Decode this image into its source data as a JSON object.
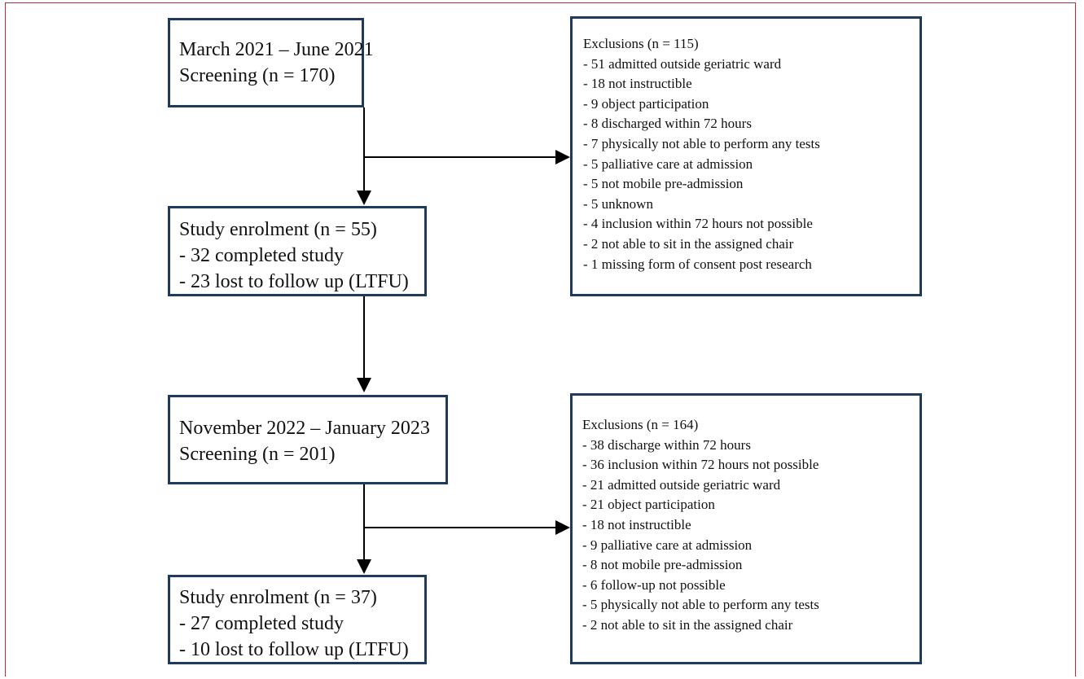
{
  "flowchart": {
    "period1": {
      "screening_box": {
        "lines": [
          "March 2021 – June 2021",
          "Screening (n = 170)"
        ]
      },
      "exclusions_box": {
        "title": "Exclusions (n = 115)",
        "items": [
          "- 51 admitted outside geriatric ward",
          "- 18 not instructible",
          "- 9 object participation",
          "- 8 discharged within 72 hours",
          "- 7 physically not able to perform any tests",
          "- 5 palliative care at admission",
          "- 5 not mobile pre-admission",
          "- 5 unknown",
          "- 4 inclusion within 72 hours not possible",
          "- 2 not able to sit in the assigned chair",
          "- 1 missing form of consent post research"
        ]
      },
      "enrolment_box": {
        "lines": [
          "Study enrolment (n = 55)",
          "- 32 completed study",
          "- 23 lost to follow up (LTFU)"
        ]
      }
    },
    "period2": {
      "screening_box": {
        "lines": [
          "November 2022 – January 2023",
          "Screening (n = 201)"
        ]
      },
      "exclusions_box": {
        "title": "Exclusions (n = 164)",
        "items": [
          "- 38 discharge within 72 hours",
          "- 36 inclusion within 72 hours not possible",
          "- 21 admitted outside geriatric ward",
          "- 21 object participation",
          "- 18 not instructible",
          "- 9 palliative care at admission",
          "- 8 not mobile pre-admission",
          "- 6 follow-up not possible",
          "- 5 physically not able to perform any tests",
          "- 2 not able to sit in the assigned chair"
        ]
      },
      "enrolment_box": {
        "lines": [
          "Study enrolment (n = 37)",
          "- 27 completed study",
          "- 10 lost to follow up (LTFU)"
        ]
      }
    }
  },
  "colors": {
    "box_border": "#1f3a5a",
    "frame_border": "#b03040",
    "arrow": "#000000",
    "text": "#111111"
  }
}
